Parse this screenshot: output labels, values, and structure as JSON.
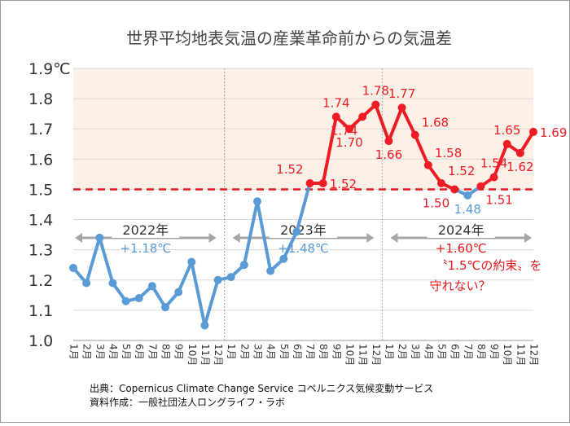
{
  "chart_data": {
    "type": "line",
    "title": "世界平均地表気温の産業革命前からの気温差",
    "ylabel_unit": "℃",
    "ylim": [
      1.0,
      1.9
    ],
    "yticks": [
      "1.0",
      "1.1",
      "1.2",
      "1.3",
      "1.4",
      "1.5",
      "1.6",
      "1.7",
      "1.8",
      "1.9"
    ],
    "categories": [
      "1月",
      "2月",
      "3月",
      "4月",
      "5月",
      "6月",
      "7月",
      "8月",
      "9月",
      "10月",
      "11月",
      "12月",
      "1月",
      "2月",
      "3月",
      "4月",
      "5月",
      "6月",
      "7月",
      "8月",
      "9月",
      "10月",
      "11月",
      "12月",
      "1月",
      "2月",
      "3月",
      "4月",
      "5月",
      "6月",
      "7月",
      "8月",
      "9月",
      "10月",
      "11月",
      "12月"
    ],
    "values": [
      1.24,
      1.19,
      1.34,
      1.19,
      1.13,
      1.14,
      1.18,
      1.11,
      1.16,
      1.26,
      1.05,
      1.2,
      1.21,
      1.25,
      1.46,
      1.23,
      1.27,
      1.36,
      1.52,
      1.52,
      1.74,
      1.7,
      1.74,
      1.78,
      1.66,
      1.77,
      1.68,
      1.58,
      1.52,
      1.5,
      1.48,
      1.51,
      1.54,
      1.65,
      1.62,
      1.69
    ],
    "threshold": 1.5,
    "data_labels": [
      {
        "i": 18,
        "text": "1.52",
        "pos": "above-left"
      },
      {
        "i": 19,
        "text": "1.52",
        "pos": "right"
      },
      {
        "i": 20,
        "text": "1.74",
        "pos": "above"
      },
      {
        "i": 21,
        "text": "1.70",
        "pos": "below"
      },
      {
        "i": 22,
        "text": "1.74",
        "pos": "below-left"
      },
      {
        "i": 23,
        "text": "1.78",
        "pos": "above"
      },
      {
        "i": 24,
        "text": "1.66",
        "pos": "below"
      },
      {
        "i": 25,
        "text": "1.77",
        "pos": "above"
      },
      {
        "i": 26,
        "text": "1.68",
        "pos": "above-right"
      },
      {
        "i": 27,
        "text": "1.58",
        "pos": "above-right"
      },
      {
        "i": 28,
        "text": "1.52",
        "pos": "above-right"
      },
      {
        "i": 29,
        "text": "1.50",
        "pos": "below-left"
      },
      {
        "i": 30,
        "text": "1.48",
        "pos": "below"
      },
      {
        "i": 31,
        "text": "1.51",
        "pos": "below-right"
      },
      {
        "i": 32,
        "text": "1.54",
        "pos": "above"
      },
      {
        "i": 33,
        "text": "1.65",
        "pos": "above"
      },
      {
        "i": 34,
        "text": "1.62",
        "pos": "below"
      },
      {
        "i": 35,
        "text": "1.69",
        "pos": "right"
      }
    ],
    "years": [
      {
        "label": "2022年",
        "change": "+1.18℃",
        "change_color": "#5b9bd5"
      },
      {
        "label": "2023年",
        "change": "+1.48℃",
        "change_color": "#5b9bd5"
      },
      {
        "label": "2024年",
        "change": "+1.60℃",
        "change_color": "#e31a1c"
      }
    ],
    "callout": [
      "〝1.5℃の約束〟を",
      "守れない？"
    ],
    "grid": true,
    "colors": {
      "blue": "#5b9bd5",
      "red": "#ee1c25",
      "shade": "#fdf0e6",
      "threshold": "#e31a1c"
    }
  },
  "footer": {
    "source": "出典：Copernicus Climate Change Service コペルニクス気候変動サービス",
    "author": "資料作成：一般社団法人ロングライフ・ラボ"
  }
}
